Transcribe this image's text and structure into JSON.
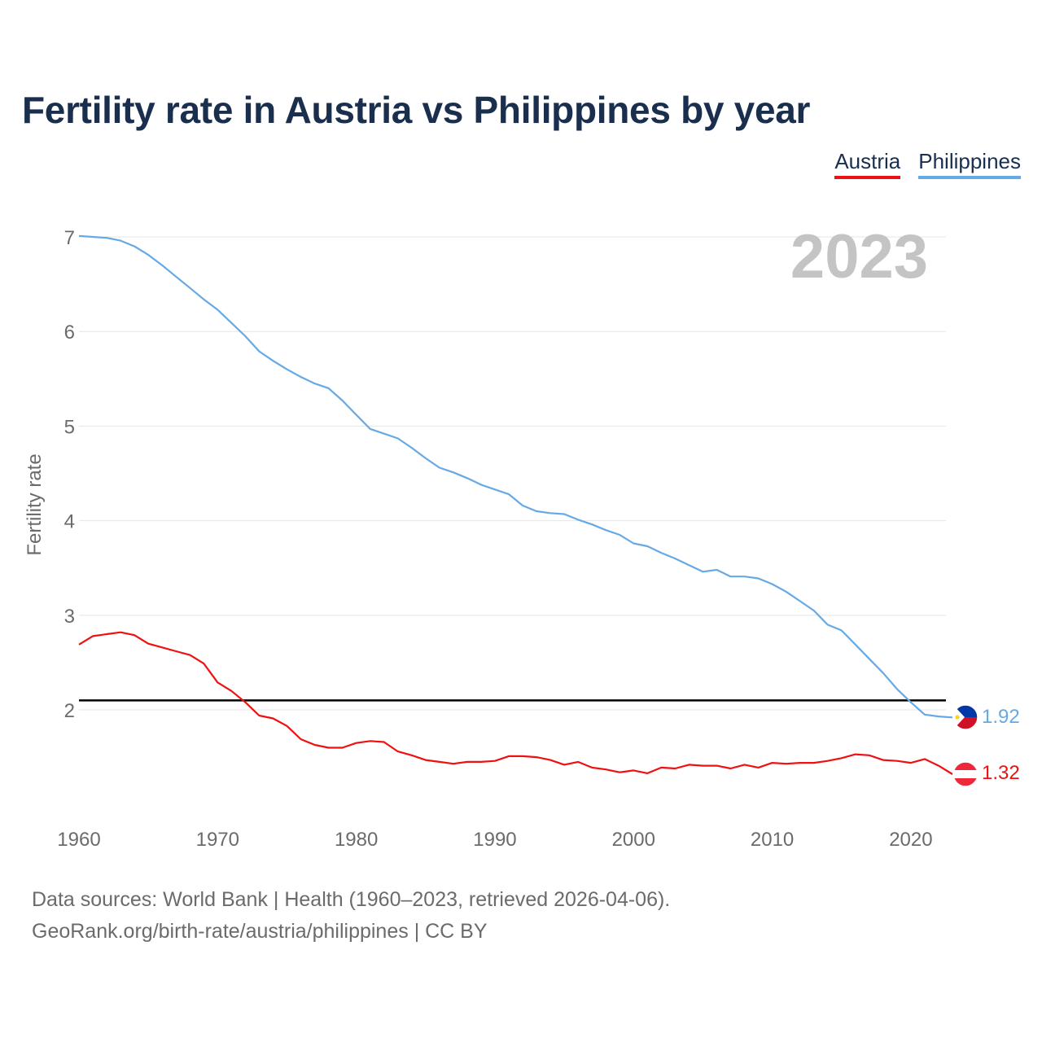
{
  "title": "Fertility rate in Austria vs Philippines by year",
  "legend": [
    {
      "name": "Austria",
      "color": "#ee1111"
    },
    {
      "name": "Philippines",
      "color": "#65a9e6"
    }
  ],
  "year_label": "2023",
  "footer": {
    "source": "Data sources: World Bank | Health (1960–2023, retrieved 2026-04-06).",
    "credit": "GeoRank.org/birth-rate/austria/philippines | CC BY"
  },
  "end_labels": {
    "philippines": "1.92",
    "austria": "1.32"
  },
  "icons": {
    "philippines": "philippines-flag-icon",
    "austria": "austria-flag-icon"
  },
  "chart_data": {
    "type": "line",
    "title": "Fertility rate in Austria vs Philippines by year",
    "xlabel": "",
    "ylabel": "Fertility rate",
    "xlim": [
      1960,
      2023
    ],
    "ylim": [
      0.9,
      7.05
    ],
    "x_ticks": [
      1960,
      1970,
      1980,
      1990,
      2000,
      2010,
      2020
    ],
    "y_ticks": [
      2,
      3,
      4,
      5,
      6,
      7
    ],
    "grid": true,
    "reference_line": 2.1,
    "legend_position": "top-right",
    "x": [
      1960,
      1961,
      1962,
      1963,
      1964,
      1965,
      1966,
      1967,
      1968,
      1969,
      1970,
      1971,
      1972,
      1973,
      1974,
      1975,
      1976,
      1977,
      1978,
      1979,
      1980,
      1981,
      1982,
      1983,
      1984,
      1985,
      1986,
      1987,
      1988,
      1989,
      1990,
      1991,
      1992,
      1993,
      1994,
      1995,
      1996,
      1997,
      1998,
      1999,
      2000,
      2001,
      2002,
      2003,
      2004,
      2005,
      2006,
      2007,
      2008,
      2009,
      2010,
      2011,
      2012,
      2013,
      2014,
      2015,
      2016,
      2017,
      2018,
      2019,
      2020,
      2021,
      2022,
      2023
    ],
    "series": [
      {
        "name": "Austria",
        "color": "#ee1111",
        "values": [
          2.69,
          2.78,
          2.8,
          2.82,
          2.79,
          2.7,
          2.66,
          2.62,
          2.58,
          2.49,
          2.29,
          2.2,
          2.08,
          1.94,
          1.91,
          1.83,
          1.69,
          1.63,
          1.6,
          1.6,
          1.65,
          1.67,
          1.66,
          1.56,
          1.52,
          1.47,
          1.45,
          1.43,
          1.45,
          1.45,
          1.46,
          1.51,
          1.51,
          1.5,
          1.47,
          1.42,
          1.45,
          1.39,
          1.37,
          1.34,
          1.36,
          1.33,
          1.39,
          1.38,
          1.42,
          1.41,
          1.41,
          1.38,
          1.42,
          1.39,
          1.44,
          1.43,
          1.44,
          1.44,
          1.46,
          1.49,
          1.53,
          1.52,
          1.47,
          1.46,
          1.44,
          1.48,
          1.41,
          1.32
        ]
      },
      {
        "name": "Philippines",
        "color": "#65a9e6",
        "values": [
          7.01,
          7.0,
          6.99,
          6.96,
          6.9,
          6.81,
          6.7,
          6.58,
          6.46,
          6.34,
          6.23,
          6.09,
          5.95,
          5.79,
          5.69,
          5.6,
          5.52,
          5.45,
          5.4,
          5.27,
          5.12,
          4.97,
          4.92,
          4.87,
          4.77,
          4.66,
          4.56,
          4.51,
          4.45,
          4.38,
          4.33,
          4.28,
          4.16,
          4.1,
          4.08,
          4.07,
          4.01,
          3.96,
          3.9,
          3.85,
          3.76,
          3.73,
          3.66,
          3.6,
          3.53,
          3.46,
          3.48,
          3.41,
          3.41,
          3.39,
          3.33,
          3.25,
          3.15,
          3.05,
          2.9,
          2.84,
          2.69,
          2.54,
          2.39,
          2.22,
          2.08,
          1.95,
          1.93,
          1.92
        ]
      }
    ]
  }
}
